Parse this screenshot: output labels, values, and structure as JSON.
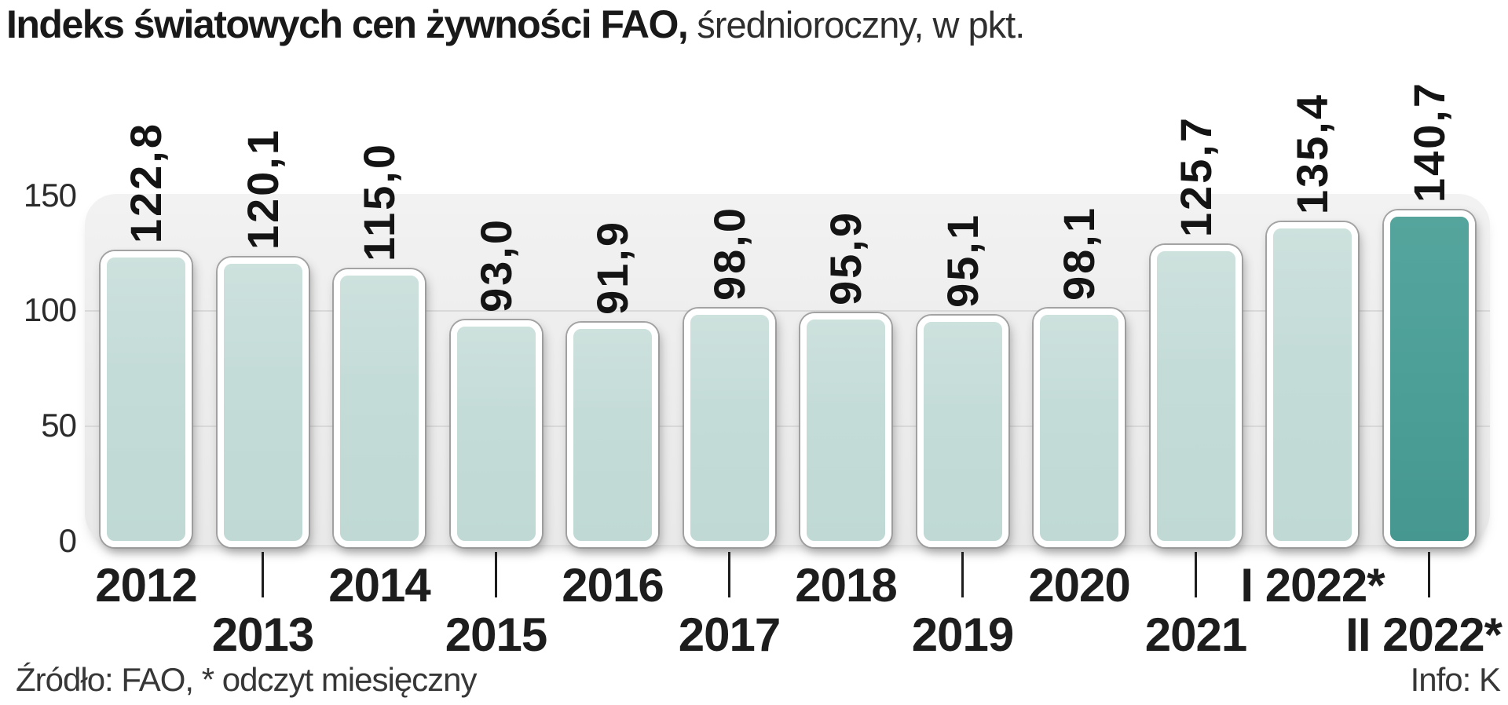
{
  "title": {
    "main": "Indeks światowych cen żywności FAO,",
    "subtitle": " średnioroczny, w pkt."
  },
  "footer": {
    "source": "Źródło: FAO, * odczyt miesięczny",
    "credit": "Info: K"
  },
  "colors": {
    "bar_fill": "#c5dcd8",
    "bar_highlight": "#4a9e96",
    "bar_border": "#ffffff",
    "bar_outline": "#9e9e9e",
    "panel_bg": "#ececec",
    "gridline": "#d9d9d9",
    "text": "#1a1a1a"
  },
  "chart_data": {
    "type": "bar",
    "title": "Indeks światowych cen żywności FAO",
    "subtitle": "średnioroczny, w pkt.",
    "categories": [
      "2012",
      "2013",
      "2014",
      "2015",
      "2016",
      "2017",
      "2018",
      "2019",
      "2020",
      "2021",
      "I 2022*",
      "II 2022*"
    ],
    "values": [
      122.8,
      120.1,
      115.0,
      93.0,
      91.9,
      98.0,
      95.9,
      95.1,
      98.1,
      125.7,
      135.4,
      140.7
    ],
    "value_labels": [
      "122,8",
      "120,1",
      "115,0",
      "93,0",
      "91,9",
      "98,0",
      "95,9",
      "95,1",
      "98,1",
      "125,7",
      "135,4",
      "140,7"
    ],
    "highlight_index": 11,
    "xlabel": "",
    "ylabel": "",
    "ylim": [
      0,
      150
    ],
    "y_ticks": [
      150,
      100,
      50,
      0
    ],
    "y_gridlines": [
      100,
      50
    ],
    "grid": "horizontal",
    "legend": false,
    "value_label_rotation": -90,
    "x_label_rows": "alternating (even years top row, odd years bottom row with tick marks)"
  }
}
